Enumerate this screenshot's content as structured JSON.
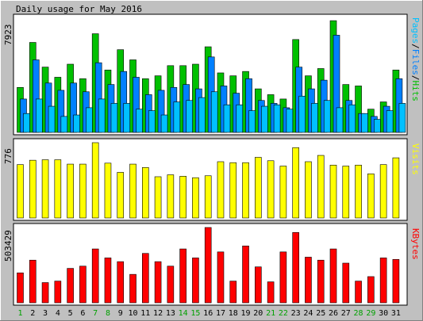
{
  "title": "Daily usage for May 2016",
  "colors": {
    "background": "#c0c0c0",
    "panel": "#ffffff",
    "hits": "#00c000",
    "files": "#0080ff",
    "pages": "#00c0ff",
    "visits": "#ffff00",
    "kbytes": "#ff0000",
    "label_black": "#000000",
    "weekend_day": "#00a000"
  },
  "chart_data": [
    {
      "type": "bar",
      "panel": "top",
      "ymax_label": "7923",
      "ylim": [
        0,
        7923
      ],
      "side_label_parts": [
        {
          "text": "Pages",
          "color": "#00c0ff"
        },
        {
          "text": "/",
          "color": "#000000"
        },
        {
          "text": "Files",
          "color": "#0080ff"
        },
        {
          "text": "/",
          "color": "#000000"
        },
        {
          "text": "Hits",
          "color": "#00c000"
        }
      ],
      "categories": [
        "1",
        "2",
        "3",
        "4",
        "5",
        "6",
        "7",
        "8",
        "9",
        "10",
        "11",
        "12",
        "13",
        "14",
        "15",
        "16",
        "17",
        "18",
        "19",
        "20",
        "21",
        "22",
        "23",
        "24",
        "25",
        "26",
        "27",
        "28",
        "29",
        "30",
        "31"
      ],
      "series": [
        {
          "name": "Hits",
          "values": [
            3100,
            6200,
            4500,
            3800,
            4700,
            3700,
            6800,
            4300,
            5700,
            5000,
            3700,
            3900,
            4600,
            4600,
            4700,
            5900,
            4100,
            3900,
            4200,
            3000,
            2600,
            2300,
            6400,
            3900,
            4400,
            7700,
            3300,
            3200,
            1600,
            2100,
            4300
          ]
        },
        {
          "name": "Files",
          "values": [
            2300,
            5000,
            3400,
            2900,
            3400,
            2800,
            4800,
            3300,
            4200,
            3800,
            2600,
            2900,
            3100,
            3300,
            3000,
            5200,
            3200,
            2700,
            3700,
            2200,
            2000,
            1700,
            4500,
            3000,
            3600,
            6700,
            2200,
            1300,
            1100,
            1800,
            3700
          ]
        },
        {
          "name": "Pages",
          "values": [
            1300,
            2300,
            1800,
            1100,
            1200,
            1700,
            2300,
            2000,
            2000,
            1600,
            1500,
            1200,
            2100,
            2200,
            2400,
            2800,
            1900,
            1900,
            1500,
            1800,
            1900,
            1600,
            2500,
            2000,
            2200,
            1700,
            1900,
            1300,
            900,
            1500,
            2000
          ]
        }
      ]
    },
    {
      "type": "bar",
      "panel": "middle",
      "ymax_label": "776",
      "ylim": [
        0,
        776
      ],
      "side_label_parts": [
        {
          "text": "Visits",
          "color": "#ffff00"
        }
      ],
      "series": [
        {
          "name": "Visits",
          "values": [
            550,
            595,
            600,
            600,
            555,
            555,
            776,
            565,
            470,
            555,
            520,
            425,
            445,
            430,
            415,
            435,
            580,
            570,
            570,
            625,
            590,
            535,
            725,
            580,
            645,
            545,
            535,
            545,
            455,
            550,
            620
          ]
        }
      ]
    },
    {
      "type": "bar",
      "panel": "bottom",
      "ymax_label": "503429",
      "ylim": [
        0,
        503429
      ],
      "side_label_parts": [
        {
          "text": "KBytes",
          "color": "#ff0000"
        }
      ],
      "series": [
        {
          "name": "KBytes",
          "values": [
            200000,
            285000,
            135000,
            145000,
            230000,
            245000,
            360000,
            300000,
            275000,
            190000,
            330000,
            275000,
            245000,
            360000,
            300000,
            503429,
            340000,
            145000,
            380000,
            240000,
            140000,
            340000,
            470000,
            305000,
            285000,
            360000,
            265000,
            145000,
            175000,
            300000,
            290000
          ]
        }
      ]
    }
  ],
  "day_labels": [
    {
      "text": "1",
      "weekend": true
    },
    {
      "text": "2",
      "weekend": false
    },
    {
      "text": "3",
      "weekend": false
    },
    {
      "text": "4",
      "weekend": false
    },
    {
      "text": "5",
      "weekend": false
    },
    {
      "text": "6",
      "weekend": false
    },
    {
      "text": "7",
      "weekend": true
    },
    {
      "text": "8",
      "weekend": true
    },
    {
      "text": "9",
      "weekend": false
    },
    {
      "text": "10",
      "weekend": false
    },
    {
      "text": "11",
      "weekend": false
    },
    {
      "text": "12",
      "weekend": false
    },
    {
      "text": "13",
      "weekend": false
    },
    {
      "text": "14",
      "weekend": true
    },
    {
      "text": "15",
      "weekend": true
    },
    {
      "text": "16",
      "weekend": false
    },
    {
      "text": "17",
      "weekend": false
    },
    {
      "text": "18",
      "weekend": false
    },
    {
      "text": "19",
      "weekend": false
    },
    {
      "text": "20",
      "weekend": false
    },
    {
      "text": "21",
      "weekend": true
    },
    {
      "text": "22",
      "weekend": true
    },
    {
      "text": "23",
      "weekend": false
    },
    {
      "text": "24",
      "weekend": false
    },
    {
      "text": "25",
      "weekend": false
    },
    {
      "text": "26",
      "weekend": false
    },
    {
      "text": "27",
      "weekend": false
    },
    {
      "text": "28",
      "weekend": true
    },
    {
      "text": "29",
      "weekend": true
    },
    {
      "text": "30",
      "weekend": false
    },
    {
      "text": "31",
      "weekend": false
    }
  ]
}
